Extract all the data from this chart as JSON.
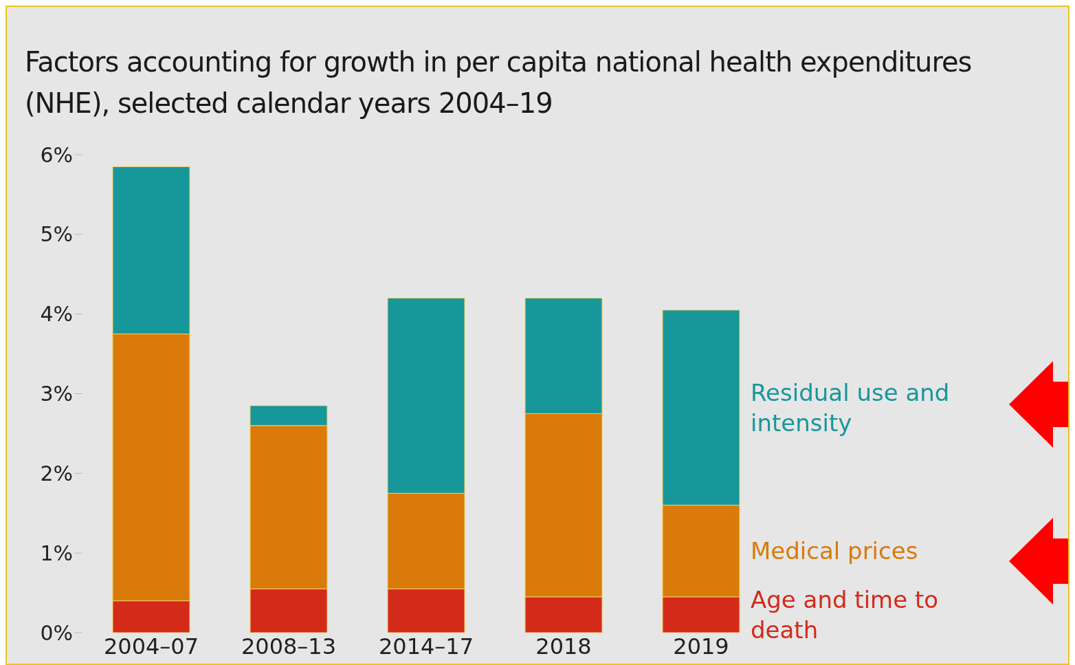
{
  "chart_data": {
    "type": "bar",
    "stacked": true,
    "title": "Factors accounting for growth in per capita national health expenditures (NHE), selected calendar years 2004–19",
    "categories": [
      "2004–07",
      "2008–13",
      "2014–17",
      "2018",
      "2019"
    ],
    "series": [
      {
        "name": "Age and time to death",
        "color": "#d42a1a",
        "values": [
          0.4,
          0.55,
          0.55,
          0.45,
          0.45
        ]
      },
      {
        "name": "Medical prices",
        "color": "#d97a0a",
        "values": [
          3.35,
          2.05,
          1.2,
          2.3,
          1.15
        ]
      },
      {
        "name": "Residual use and intensity",
        "color": "#17979a",
        "values": [
          2.1,
          0.25,
          2.45,
          1.45,
          2.45
        ]
      }
    ],
    "ylim": [
      0,
      6
    ],
    "yticks": [
      {
        "value": 0,
        "label": "0%"
      },
      {
        "value": 1,
        "label": "1%"
      },
      {
        "value": 2,
        "label": "2%"
      },
      {
        "value": 3,
        "label": "3%"
      },
      {
        "value": 4,
        "label": "4%"
      },
      {
        "value": 5,
        "label": "5%"
      },
      {
        "value": 6,
        "label": "6%"
      }
    ],
    "grid": false,
    "legend": "right"
  }
}
